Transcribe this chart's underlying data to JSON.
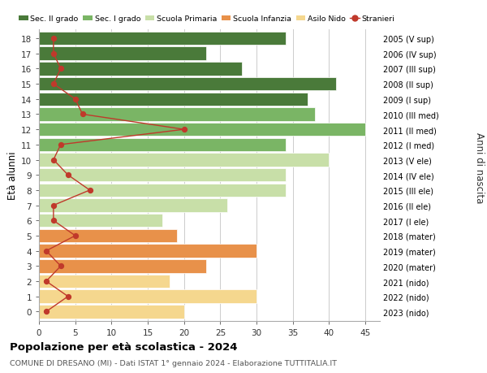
{
  "ages": [
    0,
    1,
    2,
    3,
    4,
    5,
    6,
    7,
    8,
    9,
    10,
    11,
    12,
    13,
    14,
    15,
    16,
    17,
    18
  ],
  "values": [
    20,
    30,
    18,
    23,
    30,
    19,
    17,
    26,
    34,
    34,
    40,
    34,
    45,
    38,
    37,
    41,
    28,
    23,
    34
  ],
  "stranieri": [
    1,
    4,
    1,
    3,
    1,
    5,
    2,
    2,
    7,
    4,
    2,
    3,
    20,
    6,
    5,
    2,
    3,
    2,
    2
  ],
  "right_labels": [
    "2023 (nido)",
    "2022 (nido)",
    "2021 (nido)",
    "2020 (mater)",
    "2019 (mater)",
    "2018 (mater)",
    "2017 (I ele)",
    "2016 (II ele)",
    "2015 (III ele)",
    "2014 (IV ele)",
    "2013 (V ele)",
    "2012 (I med)",
    "2011 (II med)",
    "2010 (III med)",
    "2009 (I sup)",
    "2008 (II sup)",
    "2007 (III sup)",
    "2006 (IV sup)",
    "2005 (V sup)"
  ],
  "bar_colors": [
    "#f5d78e",
    "#f5d78e",
    "#f5d78e",
    "#e8914a",
    "#e8914a",
    "#e8914a",
    "#c8dfa8",
    "#c8dfa8",
    "#c8dfa8",
    "#c8dfa8",
    "#c8dfa8",
    "#7ab565",
    "#7ab565",
    "#7ab565",
    "#4a7a3a",
    "#4a7a3a",
    "#4a7a3a",
    "#4a7a3a",
    "#4a7a3a"
  ],
  "legend_labels": [
    "Sec. II grado",
    "Sec. I grado",
    "Scuola Primaria",
    "Scuola Infanzia",
    "Asilo Nido",
    "Stranieri"
  ],
  "legend_colors": [
    "#4a7a3a",
    "#7ab565",
    "#c8dfa8",
    "#e8914a",
    "#f5d78e",
    "#c0392b"
  ],
  "xlabel_vals": [
    0,
    5,
    10,
    15,
    20,
    25,
    30,
    35,
    40,
    45
  ],
  "xlim": [
    0,
    47
  ],
  "title1": "Popolazione per età scolastica - 2024",
  "title2": "COMUNE DI DRESANO (MI) - Dati ISTAT 1° gennaio 2024 - Elaborazione TUTTITALIA.IT",
  "ylabel_left": "Età alunni",
  "ylabel_right": "Anni di nascita",
  "stranieri_color": "#c0392b",
  "grid_color": "#cccccc",
  "bg_color": "#ffffff"
}
